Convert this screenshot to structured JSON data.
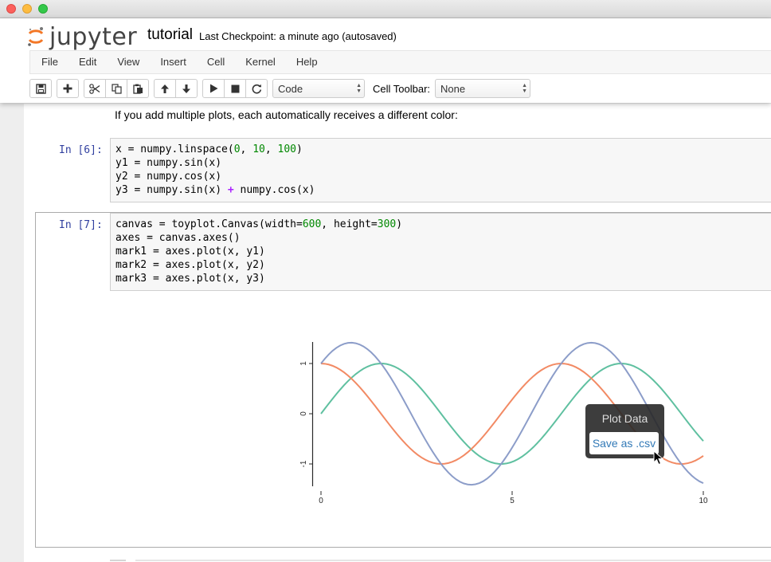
{
  "window": {
    "buttons": [
      "close",
      "minimize",
      "maximize"
    ]
  },
  "header": {
    "logo_text": "jupyter",
    "notebook_name": "tutorial",
    "checkpoint": "Last Checkpoint: a minute ago (autosaved)"
  },
  "menu": [
    "File",
    "Edit",
    "View",
    "Insert",
    "Cell",
    "Kernel",
    "Help"
  ],
  "toolbar": {
    "buttons": [
      "save-icon",
      "add-icon",
      "cut-icon",
      "copy-icon",
      "paste-icon",
      "move-up-icon",
      "move-down-icon",
      "run-icon",
      "stop-icon",
      "restart-icon"
    ],
    "cell_type": "Code",
    "cell_toolbar_label": "Cell Toolbar:",
    "cell_toolbar_value": "None"
  },
  "notebook": {
    "markdown_text": "If you add multiple plots, each automatically receives a different color:",
    "cell6": {
      "prompt": "In [6]:",
      "lines": [
        "x = numpy.linspace(0, 10, 100)",
        "y1 = numpy.sin(x)",
        "y2 = numpy.cos(x)",
        "y3 = numpy.sin(x) + numpy.cos(x)"
      ]
    },
    "cell7": {
      "prompt": "In [7]:",
      "lines": [
        "canvas = toyplot.Canvas(width=600, height=300)",
        "axes = canvas.axes()",
        "mark1 = axes.plot(x, y1)",
        "mark2 = axes.plot(x, y2)",
        "mark3 = axes.plot(x, y3)"
      ]
    }
  },
  "tooltip": {
    "title": "Plot Data",
    "button": "Save as .csv"
  },
  "chart_data": {
    "type": "line",
    "x_range": [
      0,
      10
    ],
    "y_range": [
      -1.414,
      1.414
    ],
    "x_ticks": [
      "0",
      "5",
      "10"
    ],
    "y_ticks": [
      "-1",
      "0",
      "1"
    ],
    "series": [
      {
        "function": "sin",
        "color": "#5fc0a0"
      },
      {
        "function": "cos",
        "color": "#f28a64"
      },
      {
        "function": "sin+cos",
        "color": "#8c9dc9"
      }
    ]
  }
}
